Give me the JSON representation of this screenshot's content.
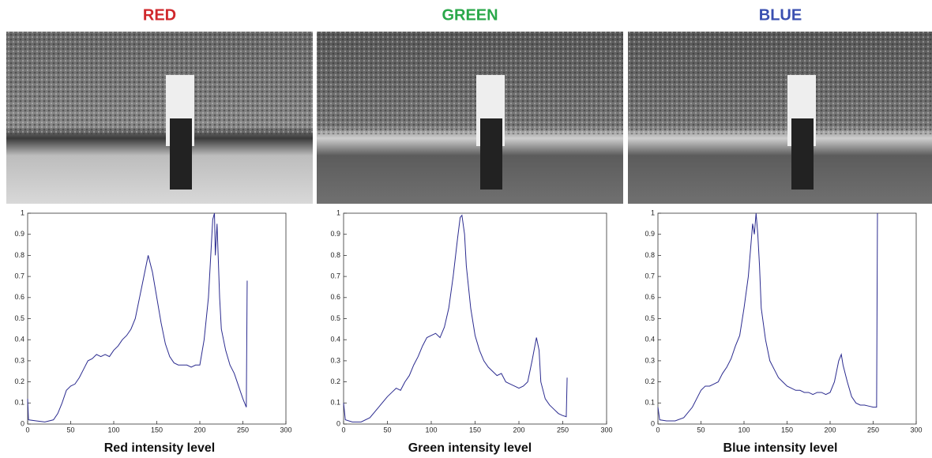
{
  "chart_data": [
    {
      "type": "line",
      "title": "RED",
      "title_color": "#d0282c",
      "xlabel": "Red intensity level",
      "xlim": [
        0,
        300
      ],
      "ylim": [
        0,
        1
      ],
      "xticks": [
        0,
        50,
        100,
        150,
        200,
        250,
        300
      ],
      "yticks": [
        0,
        0.1,
        0.2,
        0.3,
        0.4,
        0.5,
        0.6,
        0.7,
        0.8,
        0.9,
        1
      ],
      "series": [
        {
          "color": "#2b2b8f",
          "x": [
            0,
            1,
            10,
            20,
            30,
            35,
            40,
            45,
            50,
            55,
            60,
            65,
            70,
            75,
            80,
            85,
            90,
            95,
            100,
            105,
            110,
            115,
            120,
            125,
            130,
            135,
            140,
            145,
            150,
            155,
            160,
            165,
            170,
            175,
            180,
            185,
            190,
            195,
            200,
            205,
            210,
            215,
            217,
            218,
            220,
            223,
            225,
            230,
            235,
            240,
            245,
            250,
            254,
            255
          ],
          "values": [
            0.12,
            0.02,
            0.015,
            0.01,
            0.02,
            0.05,
            0.1,
            0.16,
            0.18,
            0.19,
            0.22,
            0.26,
            0.3,
            0.31,
            0.33,
            0.32,
            0.33,
            0.32,
            0.35,
            0.37,
            0.4,
            0.42,
            0.45,
            0.5,
            0.6,
            0.7,
            0.8,
            0.72,
            0.6,
            0.48,
            0.38,
            0.32,
            0.29,
            0.28,
            0.28,
            0.28,
            0.27,
            0.28,
            0.28,
            0.4,
            0.6,
            0.97,
            1.0,
            0.8,
            0.95,
            0.6,
            0.45,
            0.35,
            0.28,
            0.24,
            0.18,
            0.12,
            0.08,
            0.68
          ]
        }
      ]
    },
    {
      "type": "line",
      "title": "GREEN",
      "title_color": "#2aa84a",
      "xlabel": "Green intensity level",
      "xlim": [
        0,
        300
      ],
      "ylim": [
        0,
        1
      ],
      "xticks": [
        0,
        50,
        100,
        150,
        200,
        250,
        300
      ],
      "yticks": [
        0,
        0.1,
        0.2,
        0.3,
        0.4,
        0.5,
        0.6,
        0.7,
        0.8,
        0.9,
        1
      ],
      "series": [
        {
          "color": "#2b2b8f",
          "x": [
            0,
            2,
            10,
            20,
            30,
            40,
            50,
            55,
            60,
            65,
            70,
            75,
            80,
            85,
            90,
            95,
            100,
            105,
            110,
            115,
            120,
            125,
            130,
            133,
            135,
            138,
            140,
            145,
            150,
            155,
            160,
            165,
            170,
            175,
            180,
            185,
            190,
            195,
            200,
            205,
            210,
            215,
            220,
            223,
            225,
            230,
            235,
            240,
            245,
            250,
            254,
            255
          ],
          "values": [
            0.1,
            0.02,
            0.01,
            0.01,
            0.03,
            0.08,
            0.13,
            0.15,
            0.17,
            0.16,
            0.2,
            0.23,
            0.28,
            0.32,
            0.37,
            0.41,
            0.42,
            0.43,
            0.41,
            0.46,
            0.55,
            0.7,
            0.88,
            0.98,
            0.99,
            0.9,
            0.75,
            0.55,
            0.42,
            0.35,
            0.3,
            0.27,
            0.25,
            0.23,
            0.24,
            0.2,
            0.19,
            0.18,
            0.17,
            0.18,
            0.2,
            0.3,
            0.41,
            0.35,
            0.2,
            0.12,
            0.09,
            0.07,
            0.05,
            0.04,
            0.035,
            0.22
          ]
        }
      ]
    },
    {
      "type": "line",
      "title": "BLUE",
      "title_color": "#3a4fb0",
      "xlabel": "Blue intensity level",
      "xlim": [
        0,
        300
      ],
      "ylim": [
        0,
        1
      ],
      "xticks": [
        0,
        50,
        100,
        150,
        200,
        250,
        300
      ],
      "yticks": [
        0,
        0.1,
        0.2,
        0.3,
        0.4,
        0.5,
        0.6,
        0.7,
        0.8,
        0.9,
        1
      ],
      "series": [
        {
          "color": "#2b2b8f",
          "x": [
            0,
            2,
            10,
            20,
            30,
            40,
            45,
            50,
            55,
            60,
            65,
            70,
            75,
            80,
            85,
            90,
            95,
            100,
            105,
            108,
            110,
            112,
            114,
            116,
            118,
            120,
            125,
            130,
            135,
            140,
            145,
            150,
            155,
            160,
            165,
            170,
            175,
            180,
            185,
            190,
            195,
            200,
            205,
            210,
            213,
            215,
            220,
            225,
            230,
            235,
            240,
            245,
            250,
            254,
            255
          ],
          "values": [
            0.08,
            0.02,
            0.015,
            0.015,
            0.03,
            0.08,
            0.12,
            0.16,
            0.18,
            0.18,
            0.19,
            0.2,
            0.24,
            0.27,
            0.31,
            0.37,
            0.42,
            0.55,
            0.7,
            0.85,
            0.95,
            0.9,
            1.0,
            0.9,
            0.75,
            0.55,
            0.4,
            0.3,
            0.26,
            0.22,
            0.2,
            0.18,
            0.17,
            0.16,
            0.16,
            0.15,
            0.15,
            0.14,
            0.15,
            0.15,
            0.14,
            0.15,
            0.2,
            0.3,
            0.33,
            0.28,
            0.2,
            0.13,
            0.1,
            0.09,
            0.09,
            0.085,
            0.08,
            0.08,
            1.0
          ]
        }
      ]
    }
  ]
}
